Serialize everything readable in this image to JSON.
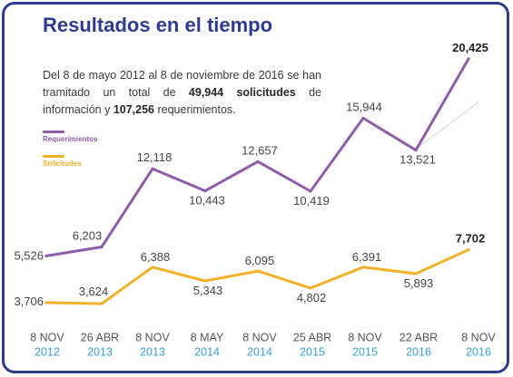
{
  "colors": {
    "frame": "#2e3b8f",
    "title": "#2e3b8f",
    "year_labels": "#3a9fd6"
  },
  "chart_data": {
    "type": "line",
    "title": "Resultados en el tiempo",
    "annotation": [
      {
        "text": "Del 8 de mayo 2012 al 8 de noviembre de 2016 se han tramitado un total de ",
        "bold": false
      },
      {
        "text": "49,944 solicitudes",
        "bold": true
      },
      {
        "text": " de información y ",
        "bold": false
      },
      {
        "text": "107,256",
        "bold": true
      },
      {
        "text": " requerimientos.",
        "bold": false
      }
    ],
    "categories": [
      {
        "date": "8 NOV",
        "year": "2012"
      },
      {
        "date": "26 ABR",
        "year": "2013"
      },
      {
        "date": "8 NOV",
        "year": "2013"
      },
      {
        "date": "8 MAY",
        "year": "2014"
      },
      {
        "date": "8 NOV",
        "year": "2014"
      },
      {
        "date": "25 ABR",
        "year": "2015"
      },
      {
        "date": "8 NOV",
        "year": "2015"
      },
      {
        "date": "22 ABR",
        "year": "2016"
      },
      {
        "date": "8 NOV",
        "year": "2016"
      }
    ],
    "series": [
      {
        "name": "Requerimientos",
        "color": "#8e5da8",
        "values": [
          5526,
          6203,
          12118,
          10443,
          12657,
          10419,
          15944,
          13521,
          20425
        ],
        "data_labels": [
          "5,526",
          "6,203",
          "12,118",
          "10,443",
          "12,657",
          "10,419",
          "15,944",
          "13,521",
          "20,425"
        ]
      },
      {
        "name": "Solicitudes",
        "color": "#f2b12a",
        "values": [
          3706,
          3624,
          6388,
          5343,
          6095,
          4802,
          6391,
          5893,
          7702
        ],
        "data_labels": [
          "3,706",
          "3,624",
          "6,388",
          "5,343",
          "6,095",
          "4,802",
          "6,391",
          "5,893",
          "7,702"
        ]
      }
    ],
    "legend_position": "top-left",
    "grid": false
  }
}
